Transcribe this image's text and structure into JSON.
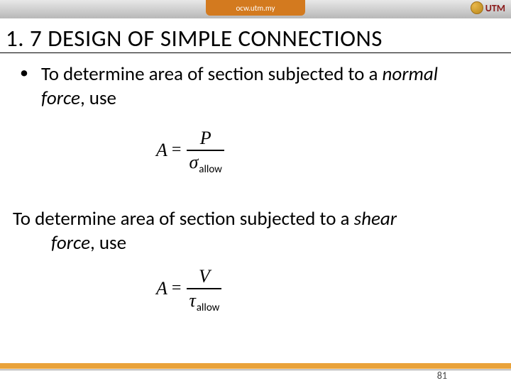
{
  "topbar": {
    "tab_label": "ocw.utm.my",
    "logo_text": "UTM",
    "bar_gradient_top": "#e8e8e8",
    "bar_gradient_bottom": "#b8b8b8",
    "tab_bg": "#d37a1f",
    "logo_color": "#8a1a1a"
  },
  "title": "1. 7 DESIGN OF SIMPLE CONNECTIONS",
  "bullet": {
    "dot": "•",
    "text_pre": "To determine area of section subjected to a ",
    "text_italic": "normal force",
    "text_post": ", use"
  },
  "formula1": {
    "lhs": "A",
    "eq": "=",
    "numerator": "P",
    "den_sym": "σ",
    "den_sub": "allow"
  },
  "para2": {
    "line1_pre": "To determine area of section subjected to a ",
    "line1_italic": "shear",
    "line2_italic": "force",
    "line2_post": ", use"
  },
  "formula2": {
    "lhs": "A",
    "eq": "=",
    "numerator": "V",
    "den_sym": "τ",
    "den_sub": "allow"
  },
  "footer": {
    "bar_color": "#e9a23a",
    "page_number": "81"
  }
}
